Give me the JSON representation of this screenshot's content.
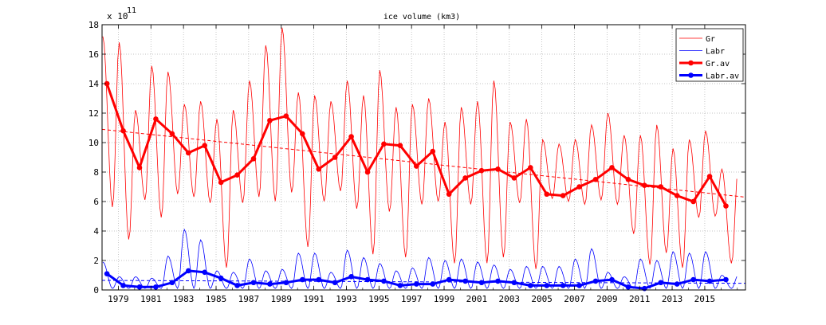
{
  "chart_data": {
    "type": "line",
    "title": "ice volume (km3)",
    "xlabel": "",
    "ylabel": "",
    "y_exponent_label": "x 10",
    "y_exponent_power": "11",
    "xlim": [
      1978,
      2017.5
    ],
    "ylim": [
      0,
      18
    ],
    "grid": true,
    "legend_position": "top-right",
    "xticks": [
      1979,
      1981,
      1983,
      1985,
      1987,
      1989,
      1991,
      1993,
      1995,
      1997,
      1999,
      2001,
      2003,
      2005,
      2007,
      2009,
      2011,
      2013,
      2015
    ],
    "yticks": [
      0,
      2,
      4,
      6,
      8,
      10,
      12,
      14,
      16,
      18
    ],
    "colors": {
      "gr": "#ff0000",
      "labr": "#0000ff"
    },
    "series": [
      {
        "name": "Gr",
        "style": "thin",
        "peaks": [
          17.2,
          16.8,
          12.2,
          15.2,
          14.8,
          12.6,
          12.8,
          11.6,
          12.2,
          14.2,
          16.6,
          17.8,
          13.4,
          13.2,
          12.8,
          14.2,
          13.2,
          14.9,
          12.4,
          12.6,
          13.0,
          11.4,
          12.4,
          12.8,
          14.2,
          11.4,
          11.6,
          10.2,
          9.9,
          10.2,
          11.2,
          12.0,
          10.5,
          10.5,
          11.2,
          9.6,
          10.2,
          10.8,
          8.2
        ],
        "troughs": [
          5.6,
          3.4,
          6.1,
          4.9,
          6.5,
          6.3,
          5.9,
          1.5,
          5.9,
          6.3,
          6.0,
          6.6,
          2.9,
          6.0,
          6.7,
          5.5,
          2.4,
          5.3,
          2.2,
          5.8,
          6.0,
          1.8,
          5.8,
          1.8,
          2.2,
          5.9,
          1.4,
          6.2,
          6.0,
          5.8,
          6.1,
          5.8,
          3.8,
          1.7,
          2.5,
          1.5,
          4.9,
          5.0,
          1.8
        ]
      },
      {
        "name": "Labr",
        "style": "thin",
        "peaks": [
          1.9,
          0.9,
          0.9,
          0.8,
          2.3,
          4.1,
          3.4,
          1.3,
          1.2,
          2.1,
          1.3,
          1.4,
          2.5,
          2.5,
          1.2,
          2.7,
          2.2,
          1.8,
          1.3,
          1.5,
          2.2,
          2.0,
          2.1,
          1.9,
          1.7,
          1.4,
          1.6,
          1.6,
          1.6,
          2.1,
          2.8,
          1.2,
          0.9,
          2.1,
          2.0,
          2.6,
          2.5,
          2.6,
          1.0
        ],
        "troughs": [
          0.1,
          0.1,
          0.1,
          0.1,
          0.1,
          0.1,
          0.1,
          0.1,
          0.1,
          0.1,
          0.1,
          0.1,
          0.1,
          0.1,
          0.1,
          0.1,
          0.1,
          0.1,
          0.1,
          0.1,
          0.1,
          0.1,
          0.1,
          0.1,
          0.1,
          0.1,
          0.1,
          0.1,
          0.1,
          0.1,
          0.1,
          0.1,
          0.1,
          0.1,
          0.1,
          0.1,
          0.1,
          0.1,
          0.1
        ]
      },
      {
        "name": "Gr.av",
        "style": "thick",
        "x": [
          1978.3,
          1979.3,
          1980.3,
          1981.3,
          1982.3,
          1983.3,
          1984.3,
          1985.3,
          1986.3,
          1987.3,
          1988.3,
          1989.3,
          1990.3,
          1991.3,
          1992.3,
          1993.3,
          1994.3,
          1995.3,
          1996.3,
          1997.3,
          1998.3,
          1999.3,
          2000.3,
          2001.3,
          2002.3,
          2003.3,
          2004.3,
          2005.3,
          2006.3,
          2007.3,
          2008.3,
          2009.3,
          2010.3,
          2011.3,
          2012.3,
          2013.3,
          2014.3,
          2015.3,
          2016.3
        ],
        "values": [
          14.0,
          10.8,
          8.3,
          11.6,
          10.6,
          9.3,
          9.8,
          7.3,
          7.8,
          8.9,
          11.5,
          11.8,
          10.6,
          8.2,
          9.0,
          10.4,
          8.0,
          9.9,
          9.8,
          8.4,
          9.4,
          6.5,
          7.6,
          8.1,
          8.2,
          7.6,
          8.3,
          6.5,
          6.4,
          7.0,
          7.5,
          8.3,
          7.5,
          7.1,
          7.0,
          6.4,
          6.0,
          7.7,
          5.7
        ]
      },
      {
        "name": "Labr.av",
        "style": "thick",
        "x": [
          1978.3,
          1979.3,
          1980.3,
          1981.3,
          1982.3,
          1983.3,
          1984.3,
          1985.3,
          1986.3,
          1987.3,
          1988.3,
          1989.3,
          1990.3,
          1991.3,
          1992.3,
          1993.3,
          1994.3,
          1995.3,
          1996.3,
          1997.3,
          1998.3,
          1999.3,
          2000.3,
          2001.3,
          2002.3,
          2003.3,
          2004.3,
          2005.3,
          2006.3,
          2007.3,
          2008.3,
          2009.3,
          2010.3,
          2011.3,
          2012.3,
          2013.3,
          2014.3,
          2015.3,
          2016.3
        ],
        "values": [
          1.1,
          0.3,
          0.2,
          0.2,
          0.5,
          1.3,
          1.2,
          0.8,
          0.3,
          0.5,
          0.4,
          0.5,
          0.7,
          0.7,
          0.5,
          0.9,
          0.7,
          0.6,
          0.3,
          0.4,
          0.4,
          0.7,
          0.6,
          0.5,
          0.6,
          0.5,
          0.3,
          0.3,
          0.3,
          0.3,
          0.6,
          0.7,
          0.2,
          0.1,
          0.5,
          0.4,
          0.7,
          0.6,
          0.7
        ]
      }
    ],
    "trend_lines": [
      {
        "series": "Gr",
        "x": [
          1978,
          2017.5
        ],
        "values": [
          10.9,
          6.3
        ]
      },
      {
        "series": "Labr",
        "x": [
          1978,
          2017.5
        ],
        "values": [
          0.65,
          0.45
        ]
      }
    ]
  }
}
